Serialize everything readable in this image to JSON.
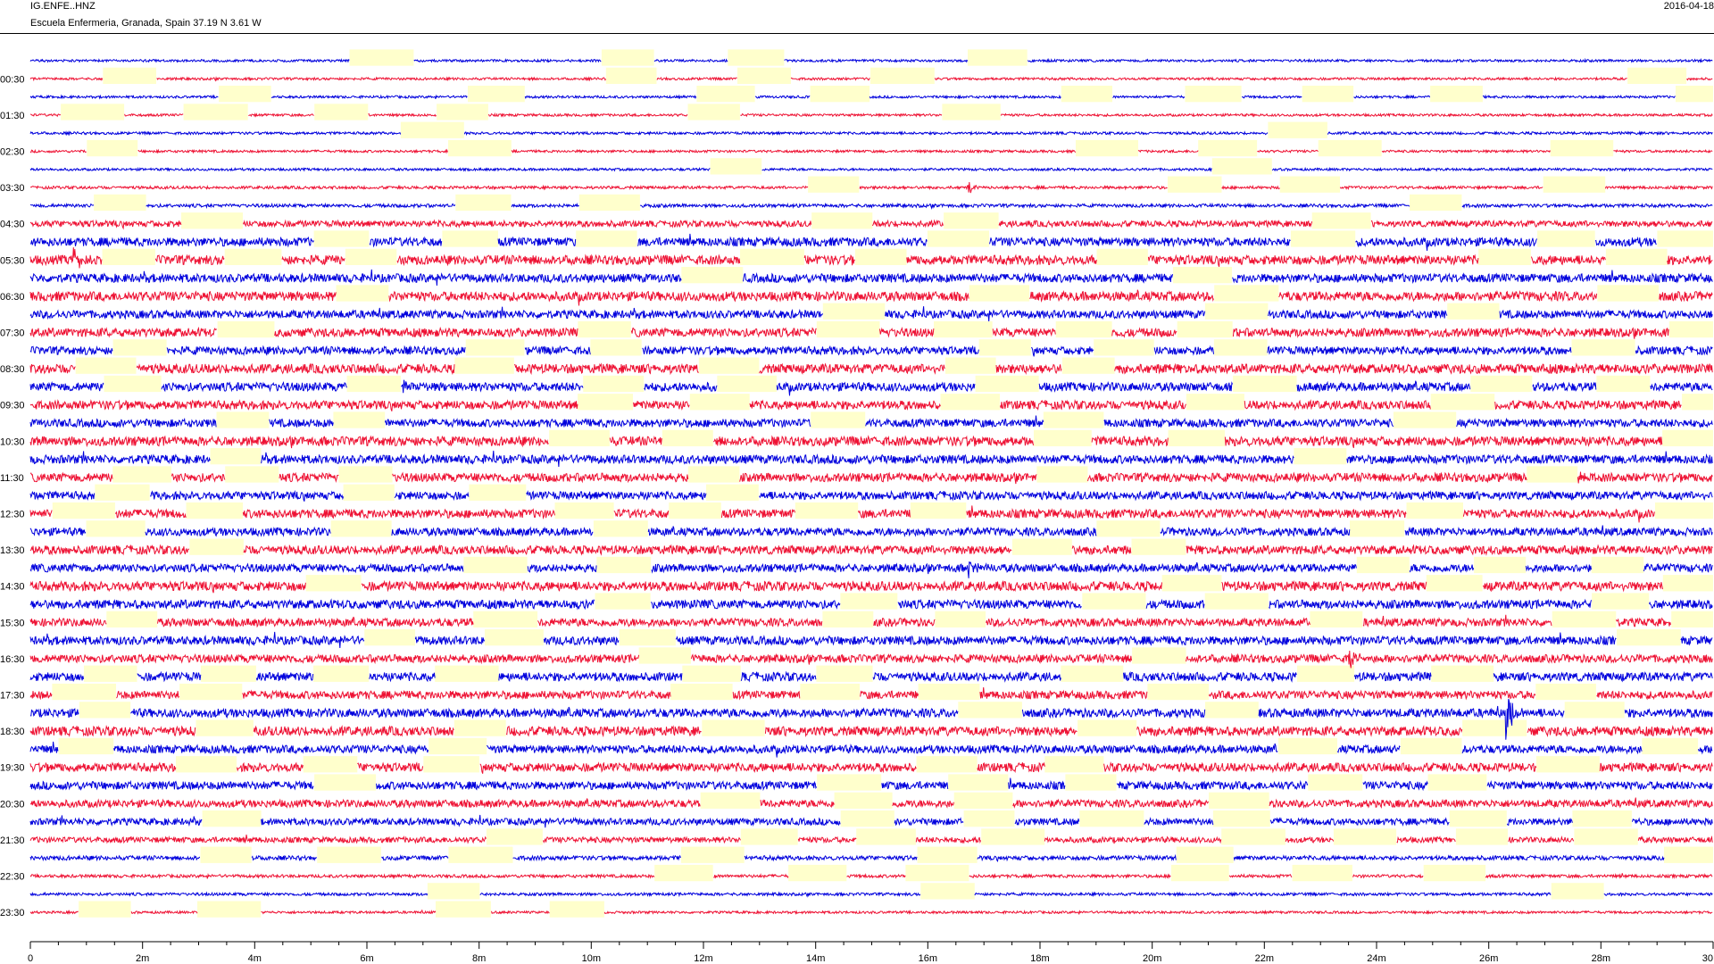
{
  "header": {
    "station_code": "IG.ENFE..HNZ",
    "location": "Escuela Enfermeria, Granada, Spain  37.19 N 3.61 W",
    "date": "2016-04-18"
  },
  "chart_data": {
    "type": "line",
    "plot_kind": "helicorder",
    "xlim": [
      0,
      30
    ],
    "x_unit": "minutes",
    "x_ticks": [
      "0",
      "2m",
      "4m",
      "6m",
      "8m",
      "10m",
      "12m",
      "14m",
      "16m",
      "18m",
      "20m",
      "22m",
      "24m",
      "26m",
      "28m",
      "30"
    ],
    "x_tick_values": [
      0,
      2,
      4,
      6,
      8,
      10,
      12,
      14,
      16,
      18,
      20,
      22,
      24,
      26,
      28,
      30
    ],
    "line_duration_min": 30,
    "line_count": 48,
    "y_labels": [
      "00:30",
      "01:30",
      "02:30",
      "03:30",
      "04:30",
      "05:30",
      "06:30",
      "07:30",
      "08:30",
      "09:30",
      "10:30",
      "11:30",
      "12:30",
      "13:30",
      "14:30",
      "15:30",
      "16:30",
      "17:30",
      "18:30",
      "19:30",
      "20:30",
      "21:30",
      "22:30",
      "23:30"
    ],
    "trace_colors": [
      "#0000dd",
      "#ee1133"
    ],
    "gap_color": "#ffffcc",
    "activity_level": [
      0.05,
      0.05,
      0.05,
      0.05,
      0.06,
      0.05,
      0.05,
      0.08,
      0.12,
      0.35,
      0.55,
      0.6,
      0.55,
      0.6,
      0.5,
      0.55,
      0.5,
      0.6,
      0.55,
      0.55,
      0.5,
      0.6,
      0.55,
      0.55,
      0.5,
      0.55,
      0.5,
      0.55,
      0.5,
      0.6,
      0.55,
      0.5,
      0.55,
      0.5,
      0.55,
      0.5,
      0.55,
      0.6,
      0.5,
      0.55,
      0.5,
      0.45,
      0.4,
      0.3,
      0.2,
      0.1,
      0.08,
      0.05
    ],
    "events": [
      {
        "line": 11,
        "minute": 0.75,
        "amp": 2.5
      },
      {
        "line": 7,
        "minute": 16.7,
        "amp": 1.5
      },
      {
        "line": 18,
        "minute": 6.6,
        "amp": 1.8
      },
      {
        "line": 28,
        "minute": 16.7,
        "amp": 1.8
      },
      {
        "line": 33,
        "minute": 23.5,
        "amp": 2.2
      },
      {
        "line": 36,
        "minute": 26.3,
        "amp": 5.0
      },
      {
        "line": 40,
        "minute": 23.3,
        "amp": 2.0
      },
      {
        "line": 10,
        "minute": 22.7,
        "amp": 1.6
      },
      {
        "line": 23,
        "minute": 27.5,
        "amp": 1.6
      }
    ]
  }
}
